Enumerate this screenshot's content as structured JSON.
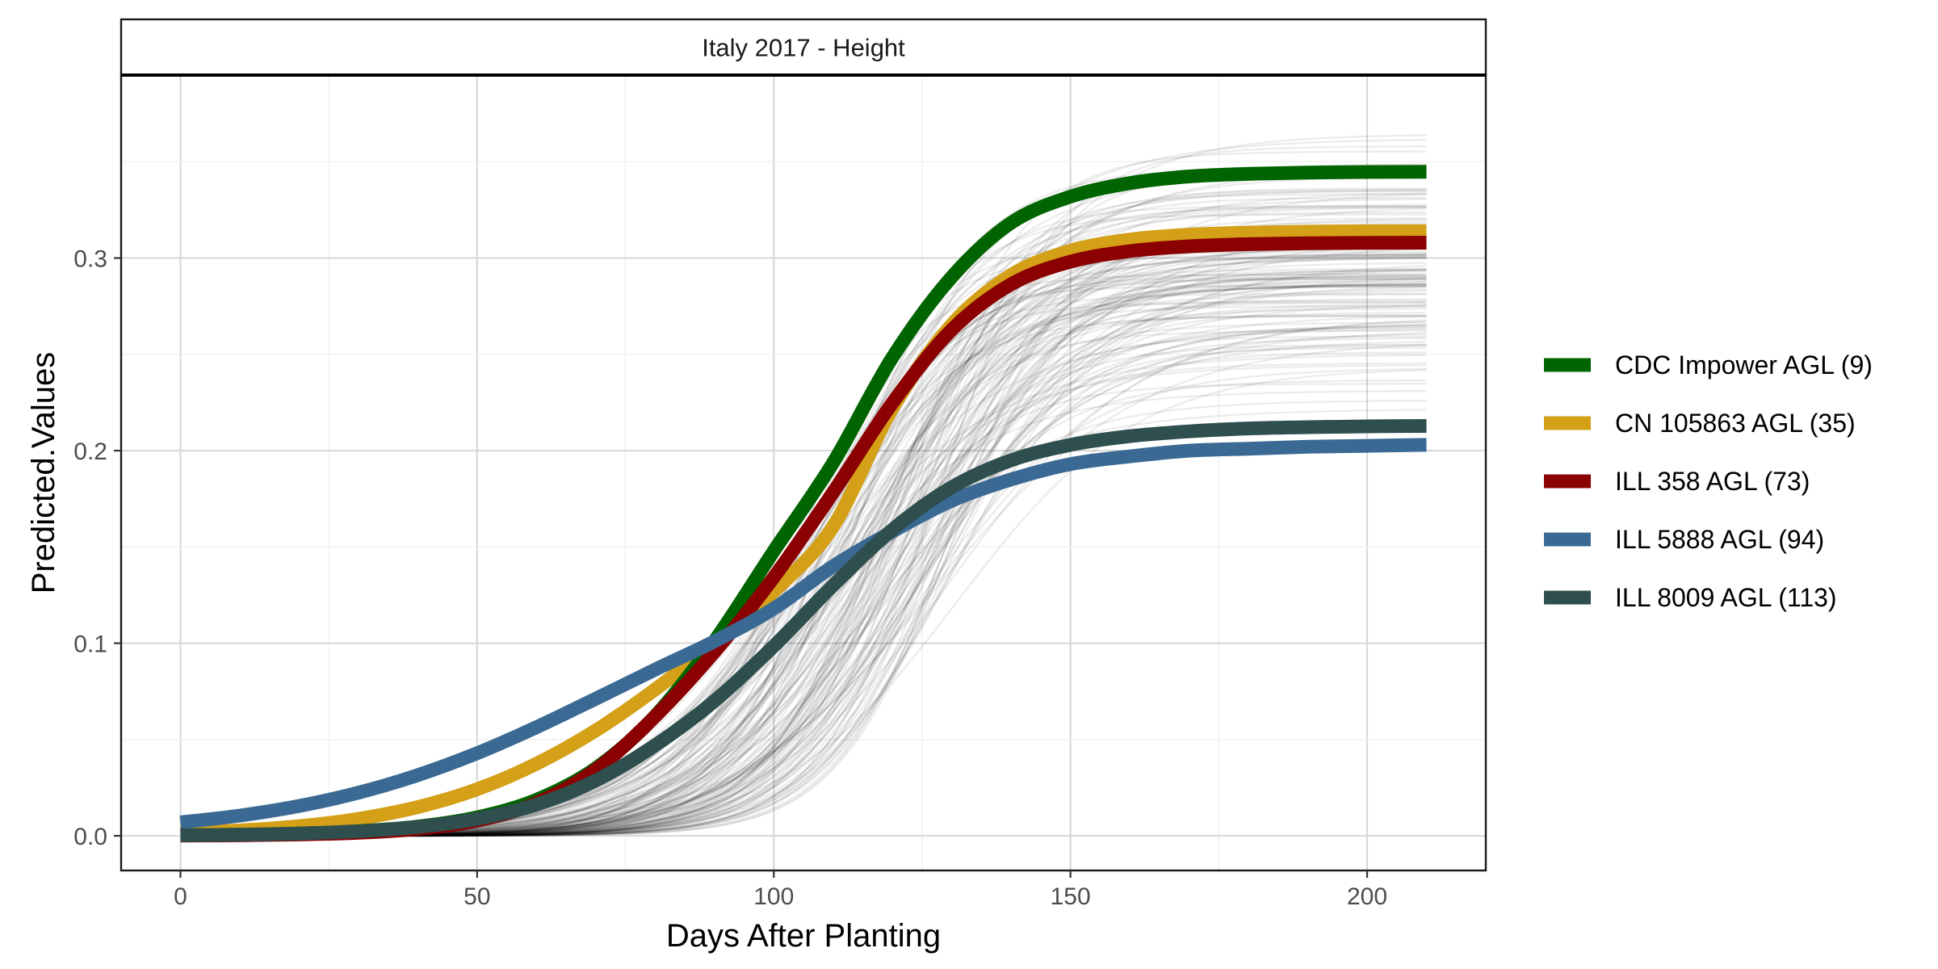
{
  "chart_data": {
    "type": "line",
    "title": "",
    "facet_label": "Italy 2017 - Height",
    "xlabel": "Days After Planting",
    "ylabel": "Predicted.Values",
    "xlim": [
      -10,
      220
    ],
    "ylim": [
      -0.018,
      0.395
    ],
    "x_ticks": [
      0,
      50,
      100,
      150,
      200
    ],
    "x_tick_labels": [
      "0",
      "50",
      "100",
      "150",
      "200"
    ],
    "y_ticks": [
      0.0,
      0.1,
      0.2,
      0.3
    ],
    "y_tick_labels": [
      "0.0",
      "0.1",
      "0.2",
      "0.3"
    ],
    "grid": true,
    "legend_position": "right",
    "x": [
      0,
      10,
      20,
      30,
      40,
      50,
      60,
      70,
      80,
      90,
      100,
      110,
      120,
      130,
      140,
      150,
      160,
      170,
      180,
      190,
      200,
      210
    ],
    "series": [
      {
        "name": "CDC Impower AGL (9)",
        "color": "#006400",
        "values": [
          0.0003,
          0.0006,
          0.0012,
          0.0024,
          0.0048,
          0.0096,
          0.0187,
          0.0351,
          0.0622,
          0.1012,
          0.1479,
          0.1937,
          0.2484,
          0.2902,
          0.3183,
          0.3319,
          0.3389,
          0.3424,
          0.3437,
          0.3444,
          0.3447,
          0.3448
        ]
      },
      {
        "name": "CN 105863 AGL (35)",
        "color": "#D4A017",
        "values": [
          0.0015,
          0.0028,
          0.005,
          0.0088,
          0.0149,
          0.0242,
          0.0374,
          0.0547,
          0.076,
          0.1,
          0.1269,
          0.1606,
          0.222,
          0.2655,
          0.2912,
          0.3038,
          0.3096,
          0.3121,
          0.3132,
          0.3137,
          0.3139,
          0.314
        ]
      },
      {
        "name": "ILL 358 AGL (73)",
        "color": "#8B0000",
        "values": [
          0.0001,
          0.0003,
          0.0007,
          0.0016,
          0.0036,
          0.0079,
          0.017,
          0.0343,
          0.062,
          0.0955,
          0.1343,
          0.1783,
          0.2248,
          0.2628,
          0.2864,
          0.2981,
          0.3036,
          0.3061,
          0.3072,
          0.3077,
          0.3079,
          0.308
        ]
      },
      {
        "name": "ILL 5888 AGL (94)",
        "color": "#3A6A94",
        "values": [
          0.007,
          0.0105,
          0.0155,
          0.0224,
          0.0315,
          0.0429,
          0.0564,
          0.0712,
          0.0863,
          0.101,
          0.118,
          0.14,
          0.158,
          0.174,
          0.185,
          0.193,
          0.197,
          0.2,
          0.201,
          0.202,
          0.2025,
          0.203
        ]
      },
      {
        "name": "ILL 8009 AGL (113)",
        "color": "#2F4F4F",
        "values": [
          0.0003,
          0.0006,
          0.0012,
          0.0024,
          0.0046,
          0.0088,
          0.0162,
          0.0287,
          0.047,
          0.07,
          0.0985,
          0.13,
          0.159,
          0.181,
          0.195,
          0.203,
          0.2075,
          0.21,
          0.2115,
          0.2122,
          0.2126,
          0.2128
        ]
      }
    ],
    "background_curves": {
      "count": 150,
      "color": "#000000",
      "description_asymptote_range": [
        0.178,
        0.375
      ]
    }
  }
}
